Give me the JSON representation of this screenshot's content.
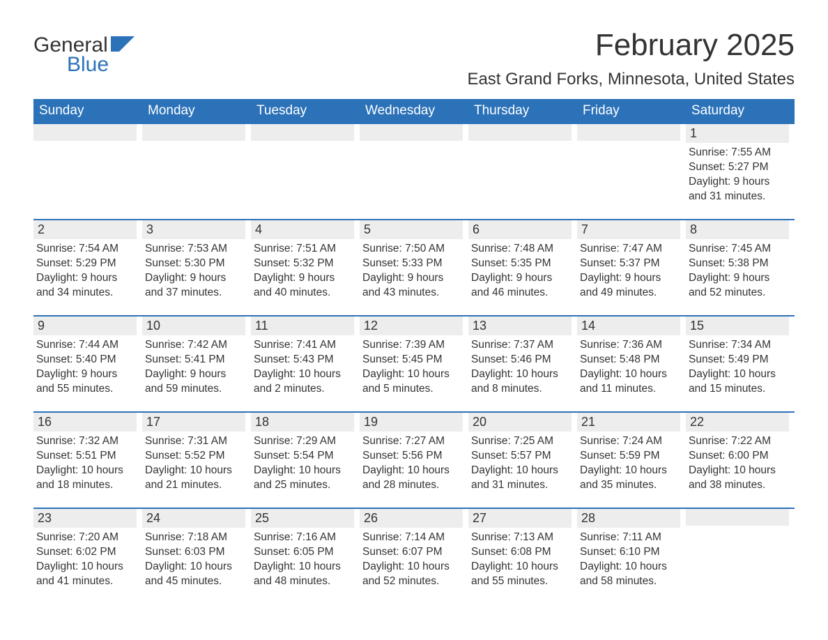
{
  "logo": {
    "text_general": "General",
    "text_blue": "Blue",
    "flag_color": "#2b72b9"
  },
  "title": "February 2025",
  "location": "East Grand Forks, Minnesota, United States",
  "colors": {
    "header_bg": "#2b72b9",
    "header_text": "#ffffff",
    "daynum_bg": "#ededed",
    "week_border": "#2b72b9",
    "body_text": "#333333",
    "background": "#ffffff"
  },
  "day_headers": [
    "Sunday",
    "Monday",
    "Tuesday",
    "Wednesday",
    "Thursday",
    "Friday",
    "Saturday"
  ],
  "weeks": [
    [
      {
        "num": "",
        "sunrise": "",
        "sunset": "",
        "daylight": ""
      },
      {
        "num": "",
        "sunrise": "",
        "sunset": "",
        "daylight": ""
      },
      {
        "num": "",
        "sunrise": "",
        "sunset": "",
        "daylight": ""
      },
      {
        "num": "",
        "sunrise": "",
        "sunset": "",
        "daylight": ""
      },
      {
        "num": "",
        "sunrise": "",
        "sunset": "",
        "daylight": ""
      },
      {
        "num": "",
        "sunrise": "",
        "sunset": "",
        "daylight": ""
      },
      {
        "num": "1",
        "sunrise": "Sunrise: 7:55 AM",
        "sunset": "Sunset: 5:27 PM",
        "daylight": "Daylight: 9 hours and 31 minutes."
      }
    ],
    [
      {
        "num": "2",
        "sunrise": "Sunrise: 7:54 AM",
        "sunset": "Sunset: 5:29 PM",
        "daylight": "Daylight: 9 hours and 34 minutes."
      },
      {
        "num": "3",
        "sunrise": "Sunrise: 7:53 AM",
        "sunset": "Sunset: 5:30 PM",
        "daylight": "Daylight: 9 hours and 37 minutes."
      },
      {
        "num": "4",
        "sunrise": "Sunrise: 7:51 AM",
        "sunset": "Sunset: 5:32 PM",
        "daylight": "Daylight: 9 hours and 40 minutes."
      },
      {
        "num": "5",
        "sunrise": "Sunrise: 7:50 AM",
        "sunset": "Sunset: 5:33 PM",
        "daylight": "Daylight: 9 hours and 43 minutes."
      },
      {
        "num": "6",
        "sunrise": "Sunrise: 7:48 AM",
        "sunset": "Sunset: 5:35 PM",
        "daylight": "Daylight: 9 hours and 46 minutes."
      },
      {
        "num": "7",
        "sunrise": "Sunrise: 7:47 AM",
        "sunset": "Sunset: 5:37 PM",
        "daylight": "Daylight: 9 hours and 49 minutes."
      },
      {
        "num": "8",
        "sunrise": "Sunrise: 7:45 AM",
        "sunset": "Sunset: 5:38 PM",
        "daylight": "Daylight: 9 hours and 52 minutes."
      }
    ],
    [
      {
        "num": "9",
        "sunrise": "Sunrise: 7:44 AM",
        "sunset": "Sunset: 5:40 PM",
        "daylight": "Daylight: 9 hours and 55 minutes."
      },
      {
        "num": "10",
        "sunrise": "Sunrise: 7:42 AM",
        "sunset": "Sunset: 5:41 PM",
        "daylight": "Daylight: 9 hours and 59 minutes."
      },
      {
        "num": "11",
        "sunrise": "Sunrise: 7:41 AM",
        "sunset": "Sunset: 5:43 PM",
        "daylight": "Daylight: 10 hours and 2 minutes."
      },
      {
        "num": "12",
        "sunrise": "Sunrise: 7:39 AM",
        "sunset": "Sunset: 5:45 PM",
        "daylight": "Daylight: 10 hours and 5 minutes."
      },
      {
        "num": "13",
        "sunrise": "Sunrise: 7:37 AM",
        "sunset": "Sunset: 5:46 PM",
        "daylight": "Daylight: 10 hours and 8 minutes."
      },
      {
        "num": "14",
        "sunrise": "Sunrise: 7:36 AM",
        "sunset": "Sunset: 5:48 PM",
        "daylight": "Daylight: 10 hours and 11 minutes."
      },
      {
        "num": "15",
        "sunrise": "Sunrise: 7:34 AM",
        "sunset": "Sunset: 5:49 PM",
        "daylight": "Daylight: 10 hours and 15 minutes."
      }
    ],
    [
      {
        "num": "16",
        "sunrise": "Sunrise: 7:32 AM",
        "sunset": "Sunset: 5:51 PM",
        "daylight": "Daylight: 10 hours and 18 minutes."
      },
      {
        "num": "17",
        "sunrise": "Sunrise: 7:31 AM",
        "sunset": "Sunset: 5:52 PM",
        "daylight": "Daylight: 10 hours and 21 minutes."
      },
      {
        "num": "18",
        "sunrise": "Sunrise: 7:29 AM",
        "sunset": "Sunset: 5:54 PM",
        "daylight": "Daylight: 10 hours and 25 minutes."
      },
      {
        "num": "19",
        "sunrise": "Sunrise: 7:27 AM",
        "sunset": "Sunset: 5:56 PM",
        "daylight": "Daylight: 10 hours and 28 minutes."
      },
      {
        "num": "20",
        "sunrise": "Sunrise: 7:25 AM",
        "sunset": "Sunset: 5:57 PM",
        "daylight": "Daylight: 10 hours and 31 minutes."
      },
      {
        "num": "21",
        "sunrise": "Sunrise: 7:24 AM",
        "sunset": "Sunset: 5:59 PM",
        "daylight": "Daylight: 10 hours and 35 minutes."
      },
      {
        "num": "22",
        "sunrise": "Sunrise: 7:22 AM",
        "sunset": "Sunset: 6:00 PM",
        "daylight": "Daylight: 10 hours and 38 minutes."
      }
    ],
    [
      {
        "num": "23",
        "sunrise": "Sunrise: 7:20 AM",
        "sunset": "Sunset: 6:02 PM",
        "daylight": "Daylight: 10 hours and 41 minutes."
      },
      {
        "num": "24",
        "sunrise": "Sunrise: 7:18 AM",
        "sunset": "Sunset: 6:03 PM",
        "daylight": "Daylight: 10 hours and 45 minutes."
      },
      {
        "num": "25",
        "sunrise": "Sunrise: 7:16 AM",
        "sunset": "Sunset: 6:05 PM",
        "daylight": "Daylight: 10 hours and 48 minutes."
      },
      {
        "num": "26",
        "sunrise": "Sunrise: 7:14 AM",
        "sunset": "Sunset: 6:07 PM",
        "daylight": "Daylight: 10 hours and 52 minutes."
      },
      {
        "num": "27",
        "sunrise": "Sunrise: 7:13 AM",
        "sunset": "Sunset: 6:08 PM",
        "daylight": "Daylight: 10 hours and 55 minutes."
      },
      {
        "num": "28",
        "sunrise": "Sunrise: 7:11 AM",
        "sunset": "Sunset: 6:10 PM",
        "daylight": "Daylight: 10 hours and 58 minutes."
      },
      {
        "num": "",
        "sunrise": "",
        "sunset": "",
        "daylight": ""
      }
    ]
  ]
}
